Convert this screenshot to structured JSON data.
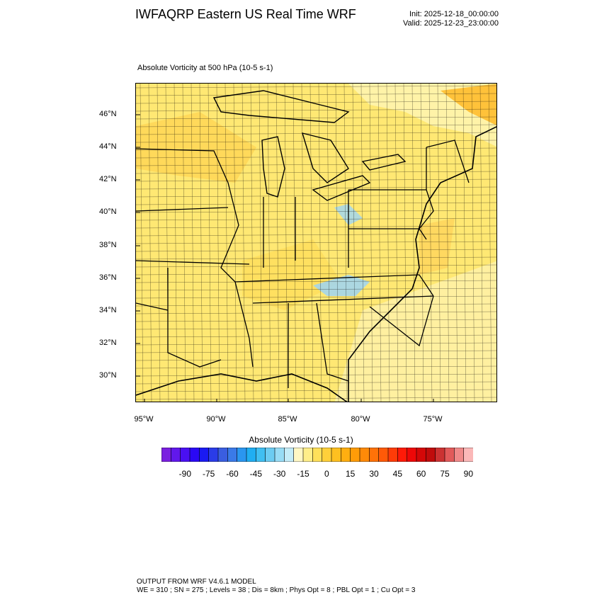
{
  "header": {
    "title": "IWFAQRP Eastern US Real Time WRF",
    "init": "Init: 2025-12-18_00:00:00",
    "valid": "Valid: 2025-12-23_23:00:00"
  },
  "plot": {
    "subtitle": "Absolute Vorticity at 500 hPa   (10-5 s-1)",
    "lat_labels": [
      "46°N",
      "44°N",
      "42°N",
      "40°N",
      "38°N",
      "36°N",
      "34°N",
      "32°N",
      "30°N"
    ],
    "lon_labels": [
      "95°W",
      "90°W",
      "85°W",
      "80°W",
      "75°W"
    ],
    "field_colors": {
      "base": "#ffe873",
      "light": "#fff3a8",
      "strong": "#ffd24a",
      "orange": "#ffc23a",
      "negative": "#9dd4f5"
    }
  },
  "colorbar": {
    "title": "Absolute Vorticity  (10-5 s-1)",
    "labels": [
      "-90",
      "-75",
      "-60",
      "-45",
      "-30",
      "-15",
      "0",
      "15",
      "30",
      "45",
      "60",
      "75",
      "90"
    ],
    "colors": [
      "#7a1fe0",
      "#6118ec",
      "#4a10f2",
      "#2a08f5",
      "#1a1af2",
      "#2a3ce8",
      "#3a5ee0",
      "#3a7ae8",
      "#2a96f0",
      "#20aef2",
      "#40bff2",
      "#6cccf2",
      "#98dcf5",
      "#c4ecf8",
      "#fff7c4",
      "#ffee8a",
      "#ffe05a",
      "#ffd03a",
      "#ffc020",
      "#ffae10",
      "#ff9c08",
      "#ff8a08",
      "#ff7208",
      "#ff5a08",
      "#ff3c08",
      "#ff1a08",
      "#ee0808",
      "#d40808",
      "#c00c0c",
      "#cc3232",
      "#e25a5a",
      "#f08a8a",
      "#fbb8b8"
    ]
  },
  "footer": {
    "line1": "OUTPUT FROM WRF V4.6.1 MODEL",
    "line2": "WE = 310 ; SN = 275 ; Levels = 38 ; Dis = 8km ; Phys Opt = 8 ; PBL Opt = 1 ; Cu Opt = 3"
  }
}
